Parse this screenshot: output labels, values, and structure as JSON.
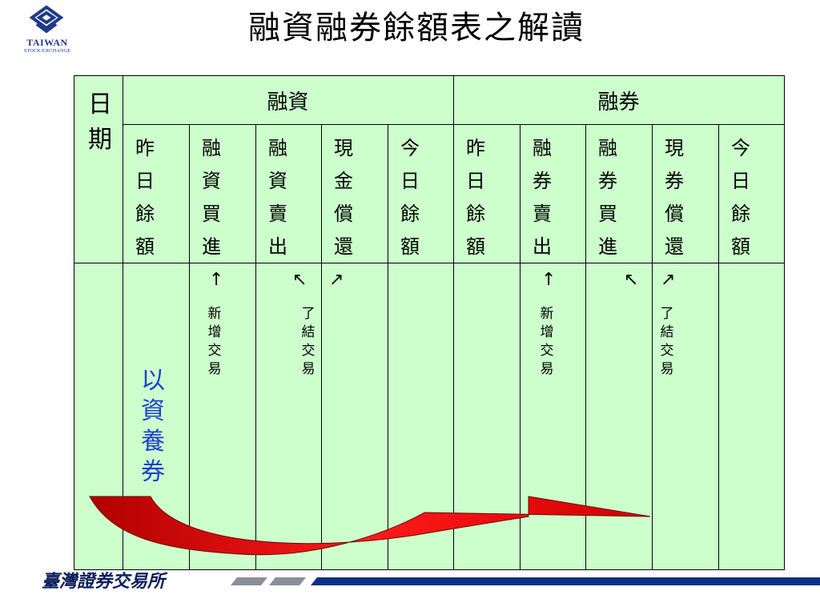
{
  "logo": {
    "name": "TAIWAN",
    "sub": "STOCK EXCHANGE"
  },
  "title": "融資融券餘額表之解讀",
  "table": {
    "date_label": [
      "日",
      "期"
    ],
    "group_headers": [
      "融資",
      "融券"
    ],
    "columns": [
      [
        "昨",
        "日",
        "餘",
        "額"
      ],
      [
        "融",
        "資",
        "買",
        "進"
      ],
      [
        "融",
        "資",
        "賣",
        "出"
      ],
      [
        "現",
        "金",
        "償",
        "還"
      ],
      [
        "今",
        "日",
        "餘",
        "額"
      ],
      [
        "昨",
        "日",
        "餘",
        "額"
      ],
      [
        "融",
        "券",
        "賣",
        "出"
      ],
      [
        "融",
        "券",
        "買",
        "進"
      ],
      [
        "現",
        "券",
        "償",
        "還"
      ],
      [
        "今",
        "日",
        "餘",
        "額"
      ]
    ],
    "arrows": [
      "↑",
      "↖",
      "↗",
      "↑",
      "↖",
      "↗"
    ],
    "notes": {
      "new_trade_1": [
        "新",
        "增",
        "交",
        "易"
      ],
      "close_trade_1": [
        "了",
        "結",
        "交",
        "易"
      ],
      "new_trade_2": [
        "新",
        "增",
        "交",
        "易"
      ],
      "close_trade_2": [
        "了",
        "結",
        "交",
        "易"
      ]
    },
    "highlight": [
      "以",
      "資",
      "養",
      "券"
    ]
  },
  "footer": {
    "org": "臺灣證券交易所"
  },
  "colors": {
    "table_bg": "#ccffcc",
    "highlight": "#1f3fd0",
    "arrow": "#e00000",
    "brand": "#1e3a8a"
  }
}
